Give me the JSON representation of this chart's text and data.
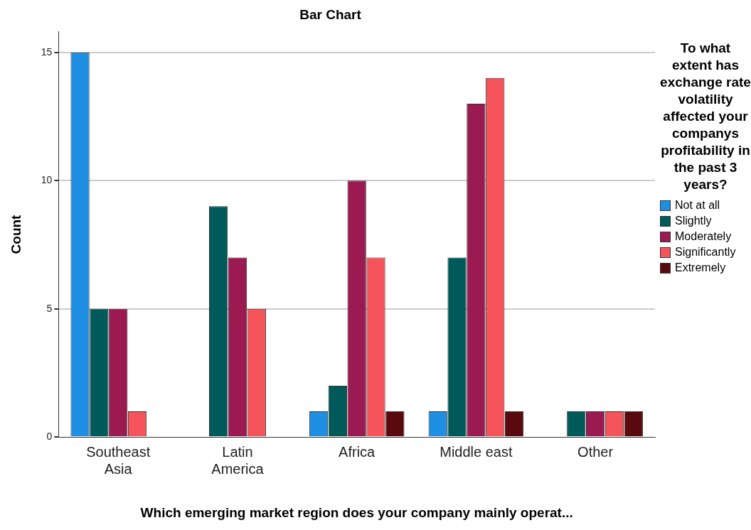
{
  "chart_data": {
    "type": "bar",
    "title": "Bar Chart",
    "xlabel": "Which emerging market region does your company mainly operat...",
    "ylabel": "Count",
    "legend_title": "To what extent has exchange rate volatility affected your companys profitability in the past 3 years?",
    "categories": [
      "Southeast Asia",
      "Latin America",
      "Africa",
      "Middle east",
      "Other"
    ],
    "series": [
      {
        "name": "Not at all",
        "color": "#1f8fe3",
        "values": [
          15,
          null,
          1,
          1,
          null
        ]
      },
      {
        "name": "Slightly",
        "color": "#005a5a",
        "values": [
          5,
          9,
          2,
          7,
          1
        ]
      },
      {
        "name": "Moderately",
        "color": "#9b1a52",
        "values": [
          5,
          7,
          10,
          13,
          1
        ]
      },
      {
        "name": "Significantly",
        "color": "#f5545a",
        "values": [
          1,
          5,
          7,
          14,
          1
        ]
      },
      {
        "name": "Extremely",
        "color": "#5a0a0f",
        "values": [
          null,
          null,
          1,
          1,
          1
        ]
      }
    ],
    "ylim": [
      0,
      15.8
    ],
    "yticks": [
      0,
      5,
      10,
      15
    ],
    "grid": "y",
    "legend": "right"
  }
}
